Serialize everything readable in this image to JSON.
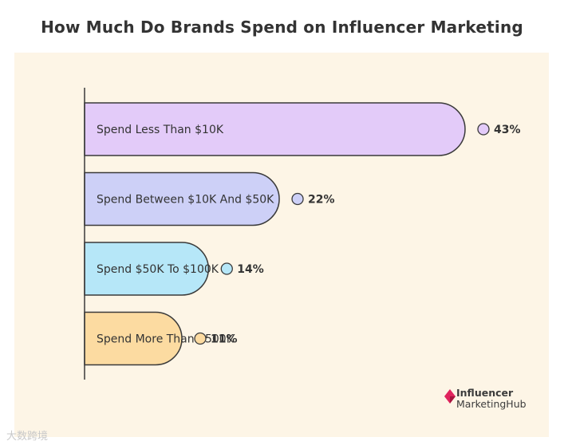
{
  "chart_data": {
    "type": "bar",
    "orientation": "horizontal",
    "title": "How Much Do Brands Spend on Influencer Marketing",
    "categories": [
      "Spend Less Than $10K",
      "Spend Between $10K And $50K",
      "Spend $50K To $100K",
      "Spend More Than $500K"
    ],
    "values": [
      43,
      22,
      14,
      11
    ],
    "value_labels": [
      "43%",
      "22%",
      "14%",
      "11%"
    ],
    "colors": [
      "#e3cbf9",
      "#cdd0f7",
      "#b6e7f8",
      "#fcdba1"
    ],
    "xlim": [
      0,
      43
    ],
    "grid": false,
    "legend": "none"
  },
  "colors": {
    "panel_background": "#fdf5e6",
    "outline": "#3a3a3a",
    "title_text": "#333333",
    "logo_accent": "#e0245e"
  },
  "logo": {
    "line1": "Influencer",
    "line2": "MarketingHub",
    "icon": "diamond-logo-icon"
  },
  "watermark": "大数跨境"
}
